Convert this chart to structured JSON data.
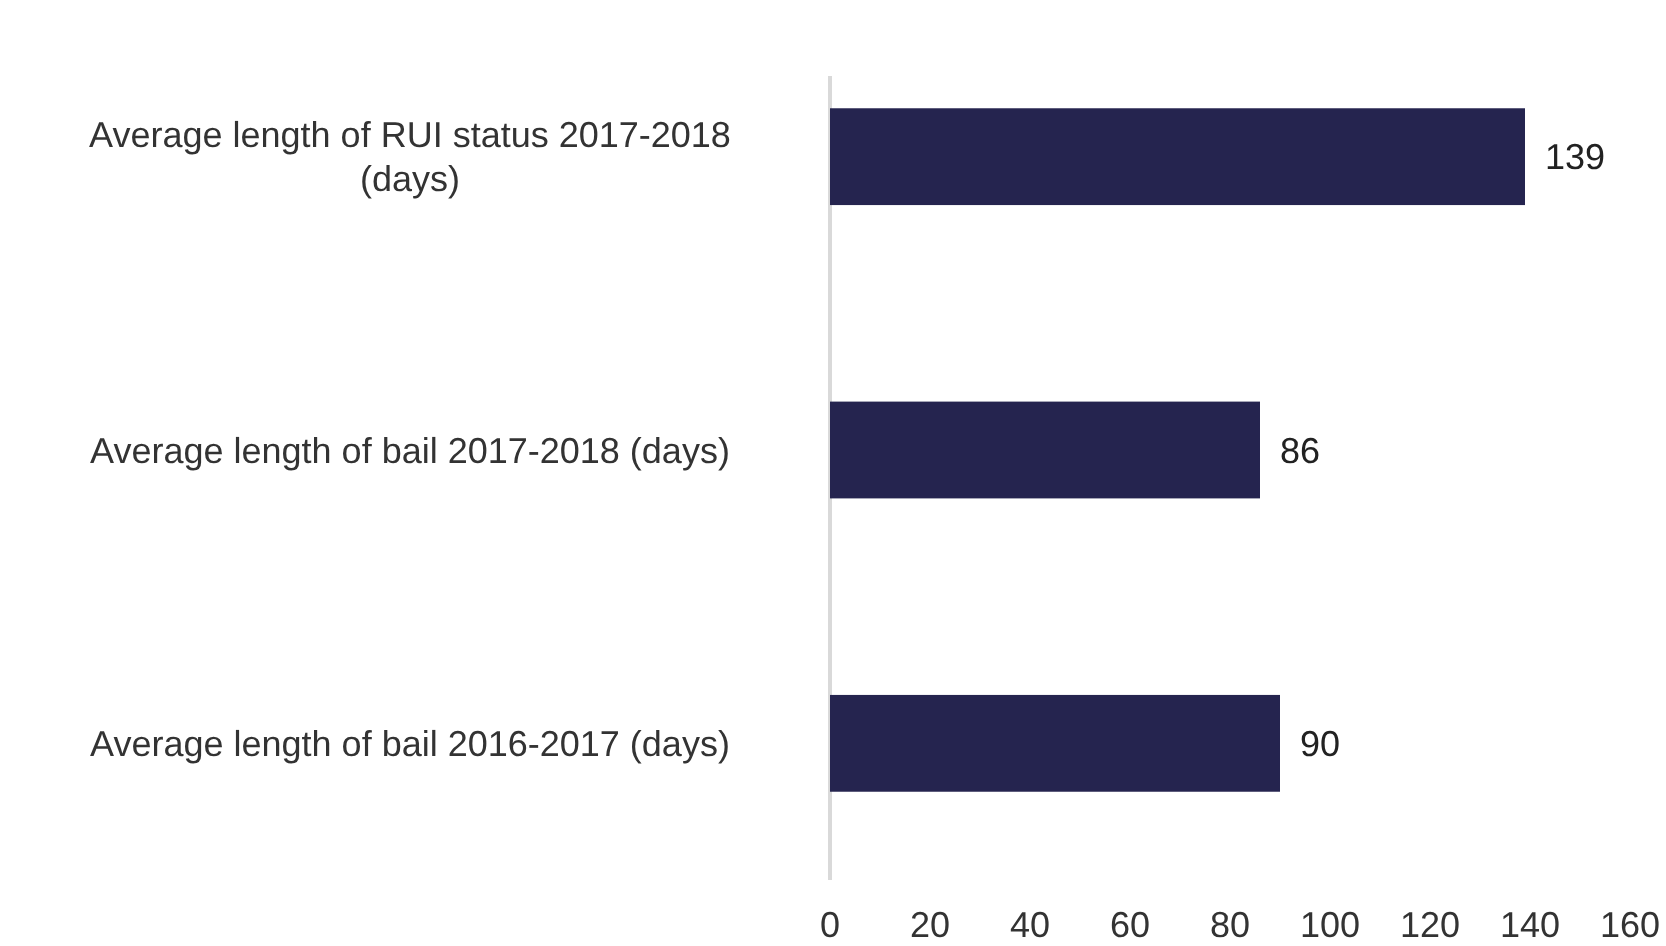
{
  "chart_data": {
    "type": "bar",
    "orientation": "horizontal",
    "categories": [
      "Average length of RUI status 2017-2018 (days)",
      "Average length of bail 2017-2018 (days)",
      "Average length of bail 2016-2017 (days)"
    ],
    "values": [
      139,
      86,
      90
    ],
    "color": "#25244f",
    "xlim": [
      0,
      160
    ],
    "xticks": [
      0,
      20,
      40,
      60,
      80,
      100,
      120,
      140,
      160
    ],
    "data_labels": true
  }
}
